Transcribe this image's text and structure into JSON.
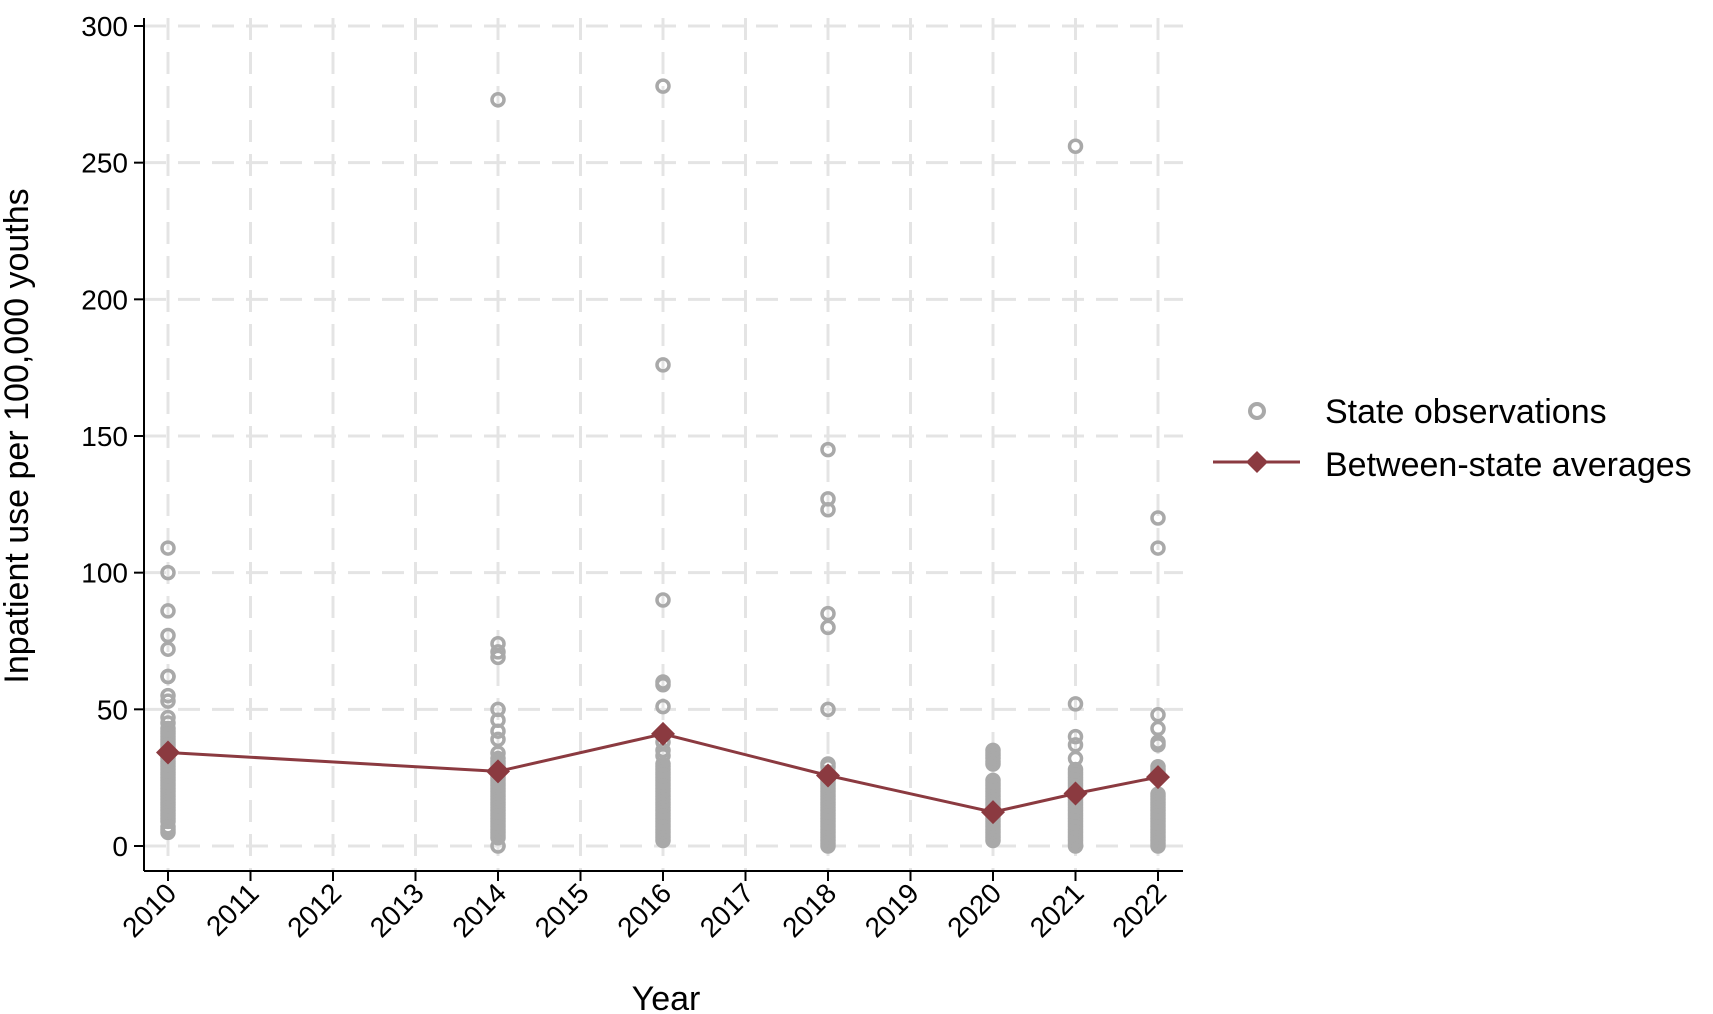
{
  "chart_data": {
    "type": "scatter",
    "xlabel": "Year",
    "ylabel": "Inpatient use per 100,000 youths",
    "xticks": [
      "2010",
      "2011",
      "2012",
      "2013",
      "2014",
      "2015",
      "2016",
      "2017",
      "2018",
      "2019",
      "2020",
      "2021",
      "2022"
    ],
    "yticks": [
      0,
      50,
      100,
      150,
      200,
      250,
      300
    ],
    "ylim": [
      0,
      300
    ],
    "grid": true,
    "legend_position": "right",
    "colors": {
      "observations": "#a9a9a9",
      "averages": "#8b3a40"
    },
    "series": [
      {
        "name": "State observations",
        "kind": "scatter",
        "points": [
          {
            "x": "2010",
            "y": [
              109,
              100,
              86,
              77,
              72,
              62,
              62,
              55,
              53,
              47,
              45,
              43,
              42,
              41,
              40,
              39,
              38,
              37,
              36,
              35,
              34,
              33,
              32,
              31,
              30,
              29,
              28,
              27,
              26,
              25,
              24,
              23,
              22,
              21,
              20,
              19,
              18,
              17,
              16,
              15,
              14,
              13,
              12,
              11,
              10,
              9,
              7,
              6,
              5
            ]
          },
          {
            "x": "2014",
            "y": [
              273,
              74,
              71,
              69,
              50,
              46,
              42,
              39,
              34,
              32,
              31,
              30,
              29,
              28,
              27,
              26,
              25,
              24,
              23,
              22,
              21,
              20,
              19,
              18,
              17,
              16,
              15,
              14,
              13,
              12,
              11,
              10,
              9,
              8,
              7,
              6,
              5,
              4,
              3,
              0
            ]
          },
          {
            "x": "2016",
            "y": [
              278,
              176,
              90,
              60,
              59,
              51,
              41,
              38,
              35,
              33,
              30,
              29,
              28,
              27,
              26,
              25,
              24,
              23,
              22,
              21,
              20,
              19,
              18,
              17,
              16,
              15,
              14,
              13,
              12,
              11,
              10,
              9,
              8,
              7,
              6,
              5,
              4,
              3,
              2
            ]
          },
          {
            "x": "2018",
            "y": [
              145,
              127,
              123,
              85,
              80,
              50,
              30,
              29,
              27,
              25,
              24,
              23,
              22,
              21,
              20,
              19,
              18,
              17,
              16,
              15,
              14,
              13,
              12,
              11,
              10,
              9,
              8,
              7,
              6,
              5,
              4,
              3,
              2,
              1,
              0
            ]
          },
          {
            "x": "2020",
            "y": [
              35,
              34,
              33,
              32,
              31,
              30,
              24,
              23,
              22,
              21,
              20,
              19,
              18,
              17,
              16,
              15,
              14,
              13,
              12,
              11,
              10,
              9,
              8,
              7,
              6,
              5,
              4,
              3,
              2
            ]
          },
          {
            "x": "2021",
            "y": [
              256,
              52,
              40,
              37,
              32,
              28,
              27,
              26,
              25,
              24,
              23,
              22,
              21,
              20,
              19,
              18,
              17,
              16,
              15,
              14,
              13,
              12,
              11,
              10,
              9,
              8,
              7,
              6,
              5,
              4,
              3,
              2,
              1,
              0
            ]
          },
          {
            "x": "2022",
            "y": [
              120,
              109,
              48,
              43,
              38,
              37,
              29,
              28,
              27,
              25,
              19,
              18,
              17,
              16,
              15,
              14,
              13,
              12,
              11,
              10,
              9,
              8,
              7,
              6,
              5,
              4,
              3,
              2,
              1,
              0
            ]
          }
        ]
      },
      {
        "name": "Between-state averages",
        "kind": "line",
        "x": [
          "2010",
          "2014",
          "2016",
          "2018",
          "2020",
          "2021",
          "2022"
        ],
        "values": [
          34.2,
          27.3,
          41.0,
          25.8,
          12.4,
          19.2,
          25.2
        ]
      }
    ]
  }
}
